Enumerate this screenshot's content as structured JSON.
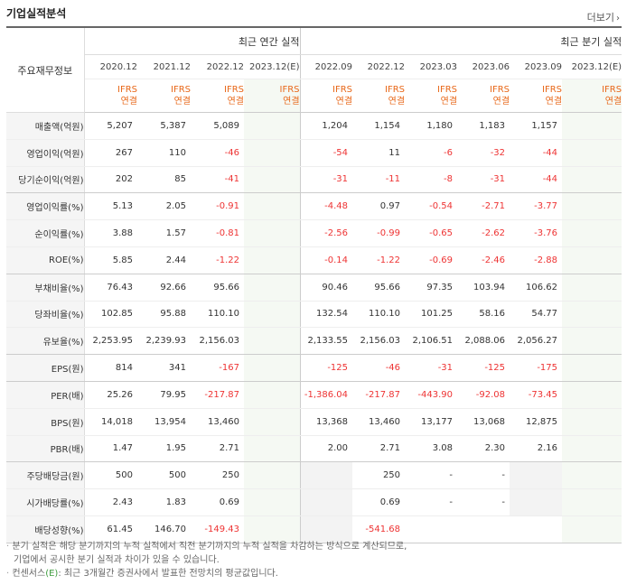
{
  "title": "기업실적분석",
  "more_label": "더보기",
  "label_header": "주요재무정보",
  "annual_group": "최근 연간 실적",
  "quarter_group": "최근 분기 실적",
  "annual_periods": [
    "2020.12",
    "2021.12",
    "2022.12",
    "2023.12(E)"
  ],
  "quarter_periods": [
    "2022.09",
    "2022.12",
    "2023.03",
    "2023.06",
    "2023.09",
    "2023.12(E)"
  ],
  "basis_top": "IFRS",
  "basis_bottom": "연결",
  "rows": [
    {
      "label": "매출액(억원)",
      "values": [
        "5,207",
        "5,387",
        "5,089",
        "",
        "1,204",
        "1,154",
        "1,180",
        "1,183",
        "1,157",
        ""
      ]
    },
    {
      "label": "영업이익(억원)",
      "values": [
        "267",
        "110",
        "-46",
        "",
        "-54",
        "11",
        "-6",
        "-32",
        "-44",
        ""
      ]
    },
    {
      "label": "당기순이익(억원)",
      "values": [
        "202",
        "85",
        "-41",
        "",
        "-31",
        "-11",
        "-8",
        "-31",
        "-44",
        ""
      ]
    },
    {
      "label": "영업이익률(%)",
      "values": [
        "5.13",
        "2.05",
        "-0.91",
        "",
        "-4.48",
        "0.97",
        "-0.54",
        "-2.71",
        "-3.77",
        ""
      ]
    },
    {
      "label": "순이익률(%)",
      "values": [
        "3.88",
        "1.57",
        "-0.81",
        "",
        "-2.56",
        "-0.99",
        "-0.65",
        "-2.62",
        "-3.76",
        ""
      ]
    },
    {
      "label": "ROE(%)",
      "values": [
        "5.85",
        "2.44",
        "-1.22",
        "",
        "-0.14",
        "-1.22",
        "-0.69",
        "-2.46",
        "-2.88",
        ""
      ]
    },
    {
      "label": "부채비율(%)",
      "values": [
        "76.43",
        "92.66",
        "95.66",
        "",
        "90.46",
        "95.66",
        "97.35",
        "103.94",
        "106.62",
        ""
      ]
    },
    {
      "label": "당좌비율(%)",
      "values": [
        "102.85",
        "95.88",
        "110.10",
        "",
        "132.54",
        "110.10",
        "101.25",
        "58.16",
        "54.77",
        ""
      ]
    },
    {
      "label": "유보율(%)",
      "values": [
        "2,253.95",
        "2,239.93",
        "2,156.03",
        "",
        "2,133.55",
        "2,156.03",
        "2,106.51",
        "2,088.06",
        "2,056.27",
        ""
      ]
    },
    {
      "label": "EPS(원)",
      "values": [
        "814",
        "341",
        "-167",
        "",
        "-125",
        "-46",
        "-31",
        "-125",
        "-175",
        ""
      ]
    },
    {
      "label": "PER(배)",
      "values": [
        "25.26",
        "79.95",
        "-217.87",
        "",
        "-1,386.04",
        "-217.87",
        "-443.90",
        "-92.08",
        "-73.45",
        ""
      ]
    },
    {
      "label": "BPS(원)",
      "values": [
        "14,018",
        "13,954",
        "13,460",
        "",
        "13,368",
        "13,460",
        "13,177",
        "13,068",
        "12,875",
        ""
      ]
    },
    {
      "label": "PBR(배)",
      "values": [
        "1.47",
        "1.95",
        "2.71",
        "",
        "2.00",
        "2.71",
        "3.08",
        "2.30",
        "2.16",
        ""
      ]
    },
    {
      "label": "주당배당금(원)",
      "values": [
        "500",
        "500",
        "250",
        "",
        "",
        "250",
        "-",
        "-",
        "",
        ""
      ]
    },
    {
      "label": "시가배당률(%)",
      "values": [
        "2.43",
        "1.83",
        "0.69",
        "",
        "",
        "0.69",
        "-",
        "-",
        "",
        ""
      ]
    },
    {
      "label": "배당성향(%)",
      "values": [
        "61.45",
        "146.70",
        "-149.43",
        "",
        "",
        "-541.68",
        "",
        "",
        "",
        ""
      ]
    }
  ],
  "notes": [
    "분기 실적은 해당 분기까지의 누적 실적에서 직전 분기까지의 누적 실적을 차감하는 방식으로 계산되므로,",
    "기업에서 공시한 분기 실적과 차이가 있을 수 있습니다.",
    "컨센서스",
    "(E)",
    ": 최근 3개월간 증권사에서 발표한 전망치의 평균값입니다."
  ],
  "colors": {
    "negative": "#e33333",
    "basis": "#e8681a",
    "estimate": "#3a9a3a"
  }
}
